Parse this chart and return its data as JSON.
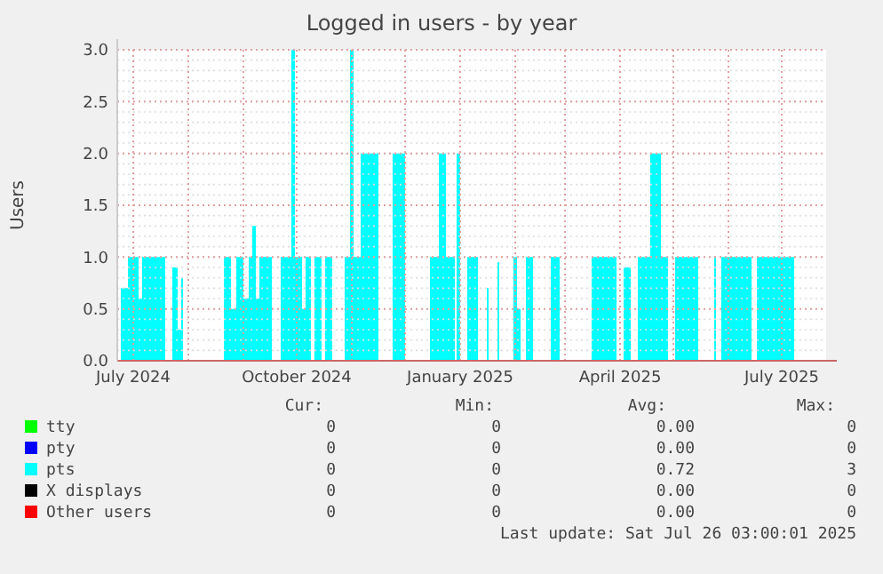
{
  "chart_data": {
    "type": "area",
    "title": "Logged in users - by year",
    "ylabel": "Users",
    "xlim": [
      "2024-06-22",
      "2025-07-26"
    ],
    "xticks": [
      {
        "value": "2024-07-01",
        "label": "July 2024"
      },
      {
        "value": "2024-08-01",
        "label": null
      },
      {
        "value": "2024-09-01",
        "label": null
      },
      {
        "value": "2024-10-01",
        "label": "October 2024"
      },
      {
        "value": "2024-11-01",
        "label": null
      },
      {
        "value": "2024-12-01",
        "label": null
      },
      {
        "value": "2025-01-01",
        "label": "January 2025"
      },
      {
        "value": "2025-02-01",
        "label": null
      },
      {
        "value": "2025-03-01",
        "label": null
      },
      {
        "value": "2025-04-01",
        "label": "April 2025"
      },
      {
        "value": "2025-05-01",
        "label": null
      },
      {
        "value": "2025-06-01",
        "label": null
      },
      {
        "value": "2025-07-01",
        "label": "July 2025"
      }
    ],
    "ylim": [
      0,
      3
    ],
    "yticks": [
      {
        "value": 0,
        "label": "0.0"
      },
      {
        "value": 0.5,
        "label": "0.5"
      },
      {
        "value": 1,
        "label": "1.0"
      },
      {
        "value": 1.5,
        "label": "1.5"
      },
      {
        "value": 2,
        "label": "2.0"
      },
      {
        "value": 2.5,
        "label": "2.5"
      },
      {
        "value": 3,
        "label": "3.0"
      }
    ],
    "grid": true,
    "legend": "bottom",
    "series": [
      {
        "name": "tty",
        "color": "#00ff00"
      },
      {
        "name": "pty",
        "color": "#0000ff"
      },
      {
        "name": "pts",
        "color": "#00ffff",
        "x": [
          "2024-06-24",
          "2024-06-28",
          "2024-07-04",
          "2024-07-06",
          "2024-07-19",
          "2024-07-23",
          "2024-07-26",
          "2024-07-28",
          "2024-07-29",
          "2024-08-21",
          "2024-08-25",
          "2024-08-28",
          "2024-09-01",
          "2024-09-04",
          "2024-09-06",
          "2024-09-08",
          "2024-09-10",
          "2024-09-17",
          "2024-09-22",
          "2024-09-28",
          "2024-09-30",
          "2024-10-04",
          "2024-10-06",
          "2024-10-09",
          "2024-10-11",
          "2024-10-15",
          "2024-10-17",
          "2024-10-21",
          "2024-10-28",
          "2024-10-31",
          "2024-11-02",
          "2024-11-06",
          "2024-11-16",
          "2024-11-24",
          "2024-12-01",
          "2024-12-15",
          "2024-12-20",
          "2024-12-24",
          "2024-12-29",
          "2024-12-30",
          "2025-01-01",
          "2025-01-05",
          "2025-01-11",
          "2025-01-16",
          "2025-01-17",
          "2025-01-22",
          "2025-01-23",
          "2025-01-31",
          "2025-02-02",
          "2025-02-04",
          "2025-02-07",
          "2025-02-11",
          "2025-02-21",
          "2025-02-26",
          "2025-03-16",
          "2025-03-30",
          "2025-04-03",
          "2025-04-07",
          "2025-04-11",
          "2025-04-18",
          "2025-04-24",
          "2025-04-28",
          "2025-05-02",
          "2025-05-15",
          "2025-05-24",
          "2025-05-25",
          "2025-05-28",
          "2025-06-14",
          "2025-06-17",
          "2025-07-08"
        ],
        "values": [
          0.7,
          1,
          0.6,
          1,
          0,
          0.9,
          0.3,
          0.8,
          0,
          1,
          0.5,
          1,
          0.6,
          1,
          1.3,
          0.6,
          1,
          0,
          1,
          3,
          1,
          0.5,
          1,
          0,
          1,
          0,
          1,
          0,
          1,
          3,
          1,
          2,
          0,
          2,
          0,
          1,
          2,
          1,
          0,
          2,
          0,
          1,
          0,
          0.7,
          0,
          0.95,
          0,
          1,
          0.5,
          0,
          1,
          0,
          1,
          0,
          1,
          0,
          0.9,
          0,
          1,
          2,
          1,
          0,
          1,
          0,
          1,
          0,
          1,
          0,
          1,
          0
        ]
      },
      {
        "name": "X displays",
        "color": "#000000"
      },
      {
        "name": "Other users",
        "color": "#ff0000"
      }
    ],
    "annotations": [
      "Cur:",
      "Min:",
      "Avg:",
      "Max:",
      "0",
      "0",
      "0.00",
      "0",
      "0",
      "0",
      "0.00",
      "0",
      "0",
      "0",
      "0.72",
      "3",
      "0",
      "0",
      "0.00",
      "0",
      "0",
      "0",
      "0.00",
      "0",
      "Last update: Sat Jul 26 03:00:01 2025"
    ]
  }
}
